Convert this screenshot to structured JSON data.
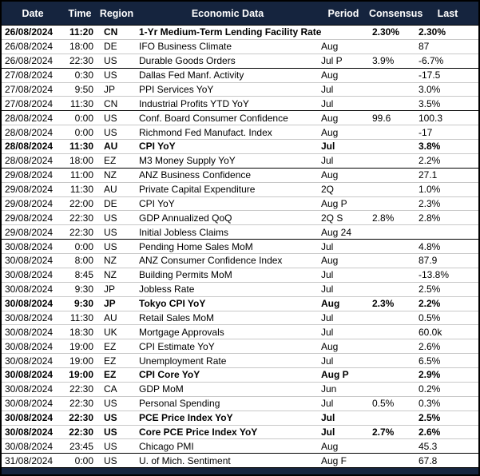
{
  "chart_data": {
    "type": "table",
    "columns": [
      "Date",
      "Time",
      "Region",
      "Economic Data",
      "Period",
      "Consensus",
      "Last"
    ],
    "rows": [
      [
        "26/08/2024",
        "11:20",
        "CN",
        "1-Yr Medium-Term Lending Facility Rate",
        "",
        "2.30%",
        "2.30%"
      ],
      [
        "26/08/2024",
        "18:00",
        "DE",
        "IFO Business Climate",
        "Aug",
        "",
        "87"
      ],
      [
        "26/08/2024",
        "22:30",
        "US",
        "Durable Goods Orders",
        "Jul P",
        "3.9%",
        "-6.7%"
      ],
      [
        "27/08/2024",
        "0:30",
        "US",
        "Dallas Fed Manf. Activity",
        "Aug",
        "",
        "-17.5"
      ],
      [
        "27/08/2024",
        "9:50",
        "JP",
        "PPI Services YoY",
        "Jul",
        "",
        "3.0%"
      ],
      [
        "27/08/2024",
        "11:30",
        "CN",
        "Industrial Profits YTD YoY",
        "Jul",
        "",
        "3.5%"
      ],
      [
        "28/08/2024",
        "0:00",
        "US",
        "Conf. Board Consumer Confidence",
        "Aug",
        "99.6",
        "100.3"
      ],
      [
        "28/08/2024",
        "0:00",
        "US",
        "Richmond Fed Manufact. Index",
        "Aug",
        "",
        "-17"
      ],
      [
        "28/08/2024",
        "11:30",
        "AU",
        "CPI YoY",
        "Jul",
        "",
        "3.8%"
      ],
      [
        "28/08/2024",
        "18:00",
        "EZ",
        "M3 Money Supply YoY",
        "Jul",
        "",
        "2.2%"
      ],
      [
        "29/08/2024",
        "11:00",
        "NZ",
        "ANZ Business Confidence",
        "Aug",
        "",
        "27.1"
      ],
      [
        "29/08/2024",
        "11:30",
        "AU",
        "Private Capital Expenditure",
        "2Q",
        "",
        "1.0%"
      ],
      [
        "29/08/2024",
        "22:00",
        "DE",
        "CPI YoY",
        "Aug P",
        "",
        "2.3%"
      ],
      [
        "29/08/2024",
        "22:30",
        "US",
        "GDP Annualized QoQ",
        "2Q S",
        "2.8%",
        "2.8%"
      ],
      [
        "29/08/2024",
        "22:30",
        "US",
        "Initial Jobless Claims",
        "Aug 24",
        "",
        ""
      ],
      [
        "30/08/2024",
        "0:00",
        "US",
        "Pending Home Sales MoM",
        "Jul",
        "",
        "4.8%"
      ],
      [
        "30/08/2024",
        "8:00",
        "NZ",
        "ANZ Consumer Confidence Index",
        "Aug",
        "",
        "87.9"
      ],
      [
        "30/08/2024",
        "8:45",
        "NZ",
        "Building Permits MoM",
        "Jul",
        "",
        "-13.8%"
      ],
      [
        "30/08/2024",
        "9:30",
        "JP",
        "Jobless Rate",
        "Jul",
        "",
        "2.5%"
      ],
      [
        "30/08/2024",
        "9:30",
        "JP",
        "Tokyo CPI YoY",
        "Aug",
        "2.3%",
        "2.2%"
      ],
      [
        "30/08/2024",
        "11:30",
        "AU",
        "Retail Sales MoM",
        "Jul",
        "",
        "0.5%"
      ],
      [
        "30/08/2024",
        "18:30",
        "UK",
        "Mortgage Approvals",
        "Jul",
        "",
        "60.0k"
      ],
      [
        "30/08/2024",
        "19:00",
        "EZ",
        "CPI Estimate YoY",
        "Aug",
        "",
        "2.6%"
      ],
      [
        "30/08/2024",
        "19:00",
        "EZ",
        "Unemployment Rate",
        "Jul",
        "",
        "6.5%"
      ],
      [
        "30/08/2024",
        "19:00",
        "EZ",
        "CPI Core YoY",
        "Aug P",
        "",
        "2.9%"
      ],
      [
        "30/08/2024",
        "22:30",
        "CA",
        "GDP MoM",
        "Jun",
        "",
        "0.2%"
      ],
      [
        "30/08/2024",
        "22:30",
        "US",
        "Personal Spending",
        "Jul",
        "0.5%",
        "0.3%"
      ],
      [
        "30/08/2024",
        "22:30",
        "US",
        "PCE Price Index YoY",
        "Jul",
        "",
        "2.5%"
      ],
      [
        "30/08/2024",
        "22:30",
        "US",
        "Core PCE Price Index YoY",
        "Jul",
        "2.7%",
        "2.6%"
      ],
      [
        "30/08/2024",
        "23:45",
        "US",
        "Chicago PMI",
        "Aug",
        "",
        "45.3"
      ],
      [
        "31/08/2024",
        "0:00",
        "US",
        "U. of Mich. Sentiment",
        "Aug F",
        "",
        "67.8"
      ]
    ],
    "bold_rows": [
      0,
      8,
      19,
      24,
      27,
      28
    ],
    "date_group_start_rows": [
      3,
      6,
      10,
      15,
      30
    ],
    "layout": {
      "header_text_align": "center",
      "grid": "light-gray row separators, black separators between date groups, navy header and footer bars"
    }
  },
  "colors": {
    "header_bg": "#15243e",
    "header_text": "#ffffff",
    "row_separator": "#c8c8c8",
    "group_separator": "#000000",
    "text": "#000000",
    "row_bg": "#ffffff"
  }
}
